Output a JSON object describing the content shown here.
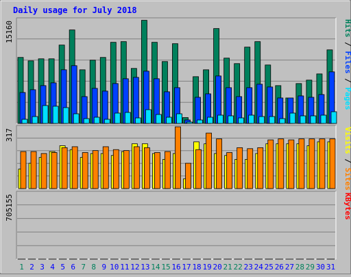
{
  "title": "Daily usage for July 2018",
  "colors": {
    "background": "#c0c0c0",
    "panel": "#c0c0c0",
    "title": "#0000ff",
    "hits": "#00805c",
    "files": "#0040ff",
    "pages": "#00e0ff",
    "visits": "#ffff00",
    "sites": "#ff8000",
    "kbytes": "#ff0000",
    "weekend_day": "#00805c",
    "weekday": "#0000ff"
  },
  "chart_data": [
    {
      "type": "bar",
      "panel": "hits-files-pages",
      "y_label_max": "15160",
      "ylim": [
        0,
        15160
      ],
      "legend": [
        "Pages",
        "Files",
        "Hits"
      ],
      "legend_separator": " / ",
      "categories": [
        "1",
        "2",
        "3",
        "4",
        "5",
        "6",
        "7",
        "8",
        "9",
        "10",
        "11",
        "12",
        "13",
        "14",
        "15",
        "16",
        "17",
        "18",
        "19",
        "20",
        "21",
        "22",
        "23",
        "24",
        "25",
        "26",
        "27",
        "28",
        "29",
        "30",
        "31"
      ],
      "series": [
        {
          "name": "Hits",
          "values": [
            9600,
            9100,
            9400,
            9400,
            11400,
            13600,
            7800,
            9200,
            9600,
            11800,
            11900,
            8000,
            15000,
            11800,
            9000,
            11600,
            850,
            6800,
            7800,
            13800,
            9500,
            8700,
            11100,
            11900,
            8500,
            5500,
            3700,
            5800,
            6300,
            7200,
            10700
          ]
        },
        {
          "name": "Files",
          "values": [
            4500,
            4900,
            5500,
            5900,
            7800,
            8400,
            3900,
            5100,
            4700,
            5800,
            6500,
            6700,
            7600,
            6500,
            4600,
            5200,
            500,
            3800,
            4300,
            6900,
            5200,
            3900,
            5200,
            5700,
            5300,
            3700,
            3700,
            4000,
            3800,
            4200,
            7500
          ]
        },
        {
          "name": "Pages",
          "values": [
            600,
            1000,
            2600,
            2500,
            2300,
            1400,
            700,
            900,
            600,
            1500,
            1600,
            800,
            2000,
            1300,
            900,
            1400,
            200,
            500,
            900,
            1200,
            1100,
            800,
            1200,
            1000,
            1000,
            700,
            1500,
            1100,
            1100,
            1200,
            1700
          ]
        }
      ]
    },
    {
      "type": "bar",
      "panel": "visits-sites",
      "y_label_max": "317",
      "ylim": [
        0,
        317
      ],
      "legend": [
        "Sites",
        "Visits"
      ],
      "legend_separator": " / ",
      "categories": [
        "1",
        "2",
        "3",
        "4",
        "5",
        "6",
        "7",
        "8",
        "9",
        "10",
        "11",
        "12",
        "13",
        "14",
        "15",
        "16",
        "17",
        "18",
        "19",
        "20",
        "21",
        "22",
        "23",
        "24",
        "25",
        "26",
        "27",
        "28",
        "29",
        "30",
        "31"
      ],
      "series": [
        {
          "name": "Visits",
          "values": [
            100,
            130,
            160,
            190,
            220,
            200,
            160,
            180,
            180,
            170,
            190,
            230,
            230,
            180,
            150,
            180,
            50,
            240,
            230,
            180,
            170,
            150,
            150,
            180,
            230,
            230,
            230,
            230,
            220,
            240,
            240
          ]
        },
        {
          "name": "Sites",
          "values": [
            190,
            190,
            180,
            185,
            210,
            215,
            185,
            195,
            215,
            200,
            195,
            215,
            210,
            185,
            190,
            325,
            130,
            200,
            285,
            255,
            185,
            210,
            205,
            210,
            250,
            255,
            250,
            255,
            255,
            255,
            255
          ]
        }
      ]
    },
    {
      "type": "bar",
      "panel": "kbytes",
      "y_label_max": "705155",
      "ylim": [
        0,
        705155
      ],
      "legend": [
        "KBytes"
      ],
      "categories": [
        "1",
        "2",
        "3",
        "4",
        "5",
        "6",
        "7",
        "8",
        "9",
        "10",
        "11",
        "12",
        "13",
        "14",
        "15",
        "16",
        "17",
        "18",
        "19",
        "20",
        "21",
        "22",
        "23",
        "24",
        "25",
        "26",
        "27",
        "28",
        "29",
        "30",
        "31"
      ],
      "series": [
        {
          "name": "KBytes",
          "values": [
            570,
            670,
            390,
            480,
            660,
            710,
            520,
            560,
            680,
            570,
            440,
            640,
            570,
            440,
            430,
            520,
            70,
            430,
            430,
            580,
            490,
            450,
            460,
            700,
            770,
            490,
            240,
            600,
            590,
            580,
            740
          ]
        }
      ]
    }
  ],
  "weekend_days": [
    "1",
    "7",
    "8",
    "14",
    "15",
    "21",
    "22",
    "28",
    "29"
  ]
}
